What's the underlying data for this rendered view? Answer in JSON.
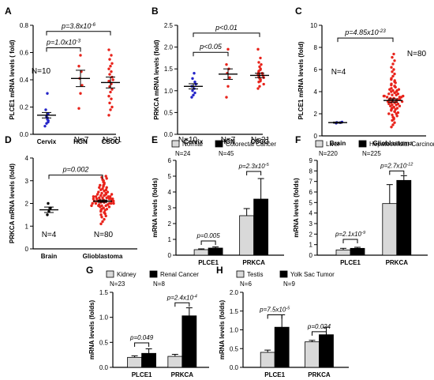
{
  "figure": {
    "panels": [
      "A",
      "B",
      "C",
      "D",
      "E",
      "F",
      "G",
      "H"
    ],
    "colors": {
      "red": "#e8231b",
      "blue": "#2424c8",
      "black": "#000000",
      "grey": "#d9d9d9"
    }
  },
  "chart_data": [
    {
      "id": "A",
      "type": "scatter",
      "ylabel": "PLCE1 mRNA levels ( fold)",
      "ylim": [
        0,
        0.8
      ],
      "yticks": [
        "0.0",
        "0.2",
        "0.4",
        "0.6",
        "0.8"
      ],
      "categories": [
        "Cervix",
        "HGN",
        "CSCC"
      ],
      "groups": [
        {
          "label": "Cervix",
          "n": "N=10",
          "color": "#2424c8",
          "mean": 0.14,
          "sem": 0.02,
          "points": [
            0.06,
            0.08,
            0.09,
            0.1,
            0.11,
            0.12,
            0.13,
            0.15,
            0.18,
            0.3
          ]
        },
        {
          "label": "HGN",
          "n": "N=7",
          "color": "#e8231b",
          "mean": 0.41,
          "sem": 0.06,
          "points": [
            0.19,
            0.3,
            0.36,
            0.41,
            0.46,
            0.5,
            0.58
          ]
        },
        {
          "label": "CSCC",
          "n": "N=21",
          "color": "#e8231b",
          "mean": 0.38,
          "sem": 0.04,
          "points": [
            0.14,
            0.18,
            0.2,
            0.23,
            0.26,
            0.28,
            0.31,
            0.33,
            0.35,
            0.37,
            0.39,
            0.4,
            0.42,
            0.44,
            0.46,
            0.48,
            0.5,
            0.52,
            0.55,
            0.58,
            0.62
          ]
        }
      ],
      "brackets": [
        {
          "from": 0,
          "to": 2,
          "y": 0.755,
          "label": "p=3.8x10",
          "sup": "-6"
        },
        {
          "from": 0,
          "to": 1,
          "y": 0.635,
          "label": "p=1.0x10",
          "sup": "-3"
        }
      ]
    },
    {
      "id": "B",
      "type": "scatter",
      "ylabel": "PRKCA mRNA levels (fold)",
      "ylim": [
        0,
        2.5
      ],
      "yticks": [
        "0.0",
        "0.5",
        "1.0",
        "1.5",
        "2.0",
        "2.5"
      ],
      "categories": [
        "Cervix",
        "HGN",
        "CSCC"
      ],
      "groups": [
        {
          "label": "Cervix",
          "n": "N=10",
          "color": "#2424c8",
          "mean": 1.1,
          "sem": 0.06,
          "points": [
            0.85,
            0.9,
            0.95,
            1.0,
            1.05,
            1.1,
            1.15,
            1.2,
            1.28,
            1.4
          ]
        },
        {
          "label": "HGN",
          "n": "N=7",
          "color": "#e8231b",
          "mean": 1.38,
          "sem": 0.12,
          "points": [
            0.85,
            1.1,
            1.3,
            1.4,
            1.5,
            1.6,
            1.95
          ]
        },
        {
          "label": "CSCC",
          "n": "N=21",
          "color": "#e8231b",
          "mean": 1.35,
          "sem": 0.05,
          "points": [
            1.05,
            1.1,
            1.15,
            1.2,
            1.22,
            1.25,
            1.28,
            1.3,
            1.32,
            1.35,
            1.38,
            1.4,
            1.42,
            1.45,
            1.48,
            1.5,
            1.55,
            1.6,
            1.65,
            1.75,
            1.95
          ]
        }
      ],
      "brackets": [
        {
          "from": 0,
          "to": 2,
          "y": 2.32,
          "label": "p<0.01",
          "sup": ""
        },
        {
          "from": 0,
          "to": 1,
          "y": 1.88,
          "label": "p<0.05",
          "sup": ""
        }
      ]
    },
    {
      "id": "C",
      "type": "scatter",
      "ylabel": "PLCE1 mRNA levels (fold)",
      "ylim": [
        0,
        10
      ],
      "yticks": [
        "0",
        "2",
        "4",
        "6",
        "8",
        "10"
      ],
      "categories": [
        "Brain",
        "Glioblastoma"
      ],
      "groups": [
        {
          "label": "Brain",
          "n": "N=4",
          "color": "#2424c8",
          "mean": 1.2,
          "sem": 0.05,
          "points": [
            1.15,
            1.2,
            1.22,
            1.25
          ]
        },
        {
          "label": "Glioblastoma",
          "n": "N=80",
          "color": "#e8231b",
          "mean": 3.2,
          "sem": 0.15,
          "points": [
            0.8,
            1.0,
            1.2,
            1.4,
            1.5,
            1.6,
            1.7,
            1.8,
            1.9,
            2.0,
            2.0,
            2.1,
            2.2,
            2.2,
            2.3,
            2.4,
            2.4,
            2.5,
            2.5,
            2.6,
            2.6,
            2.7,
            2.7,
            2.8,
            2.8,
            2.9,
            2.9,
            3.0,
            3.0,
            3.0,
            3.1,
            3.1,
            3.1,
            3.2,
            3.2,
            3.2,
            3.3,
            3.3,
            3.3,
            3.4,
            3.4,
            3.4,
            3.5,
            3.5,
            3.5,
            3.6,
            3.6,
            3.6,
            3.7,
            3.7,
            3.8,
            3.8,
            3.9,
            3.9,
            4.0,
            4.0,
            4.1,
            4.1,
            4.2,
            4.2,
            4.3,
            4.4,
            4.5,
            4.5,
            4.6,
            4.7,
            4.8,
            4.9,
            5.0,
            5.1,
            5.2,
            5.4,
            5.6,
            5.8,
            6.0,
            6.2,
            6.5,
            6.8,
            7.1,
            7.4
          ]
        }
      ],
      "brackets": [
        {
          "from": 0,
          "to": 1,
          "y": 8.85,
          "label": "p=4.85x10",
          "sup": "-23"
        }
      ]
    },
    {
      "id": "D",
      "type": "scatter",
      "ylabel": "PRKCA mRNA levels (fold)",
      "ylim": [
        0,
        4
      ],
      "yticks": [
        "0",
        "1",
        "2",
        "3",
        "4"
      ],
      "categories": [
        "Brain",
        "Glioblastoma"
      ],
      "groups": [
        {
          "label": "Brain",
          "n": "N=4",
          "color": "#000000",
          "mean": 1.72,
          "sem": 0.12,
          "points": [
            1.5,
            1.65,
            1.8,
            2.0
          ]
        },
        {
          "label": "Glioblastoma",
          "n": "N=80",
          "color": "#e8231b",
          "mean": 2.1,
          "sem": 0.05,
          "points": [
            1.1,
            1.2,
            1.3,
            1.4,
            1.45,
            1.5,
            1.55,
            1.6,
            1.6,
            1.65,
            1.7,
            1.7,
            1.75,
            1.75,
            1.8,
            1.8,
            1.85,
            1.85,
            1.9,
            1.9,
            1.9,
            1.95,
            1.95,
            2.0,
            2.0,
            2.0,
            2.0,
            2.05,
            2.05,
            2.05,
            2.1,
            2.1,
            2.1,
            2.1,
            2.15,
            2.15,
            2.15,
            2.2,
            2.2,
            2.2,
            2.2,
            2.25,
            2.25,
            2.25,
            2.3,
            2.3,
            2.3,
            2.35,
            2.35,
            2.35,
            2.4,
            2.4,
            2.4,
            2.45,
            2.45,
            2.5,
            2.5,
            2.55,
            2.55,
            2.6,
            2.6,
            2.65,
            2.7,
            2.7,
            2.75,
            2.8,
            2.8,
            2.85,
            2.9,
            2.95,
            3.0,
            3.05,
            3.1,
            3.15,
            3.2,
            2.3,
            2.2,
            2.0,
            1.9,
            2.1
          ]
        }
      ],
      "brackets": [
        {
          "from": 0,
          "to": 1,
          "y": 3.25,
          "label": "p=0.002",
          "sup": ""
        }
      ]
    },
    {
      "id": "E",
      "type": "bar",
      "ylabel": "mRNA levels (folds)",
      "ylim": [
        0,
        6
      ],
      "yticks": [
        "0",
        "1",
        "2",
        "3",
        "4",
        "5",
        "6"
      ],
      "categories": [
        "PLCE1",
        "PRKCA"
      ],
      "series": [
        {
          "name": "Normal",
          "n": "N=24",
          "color": "#d9d9d9",
          "values": [
            0.35,
            2.5
          ],
          "err": [
            0.05,
            0.45
          ]
        },
        {
          "name": "Colorectal Cancer",
          "n": "N=45",
          "color": "#000000",
          "values": [
            0.45,
            3.55
          ],
          "err": [
            0.07,
            1.3
          ]
        }
      ],
      "brackets": [
        {
          "cat": 0,
          "y": 0.9,
          "label": "p=0.005",
          "sup": ""
        },
        {
          "cat": 1,
          "y": 5.3,
          "label": "p=2.3x10",
          "sup": "-5"
        }
      ]
    },
    {
      "id": "F",
      "type": "bar",
      "ylabel": "mRNA levels (folds)",
      "ylim": [
        0,
        9
      ],
      "yticks": [
        "0",
        "1",
        "2",
        "3",
        "4",
        "5",
        "6",
        "7",
        "8",
        "9"
      ],
      "categories": [
        "PLCE1",
        "PRKCA"
      ],
      "series": [
        {
          "name": "Liver",
          "n": "N=220",
          "color": "#d9d9d9",
          "values": [
            0.5,
            4.9
          ],
          "err": [
            0.15,
            1.8
          ]
        },
        {
          "name": "Hepatocellular Carcinoma",
          "n": "N=225",
          "color": "#000000",
          "values": [
            0.65,
            7.1
          ],
          "err": [
            0.1,
            0.45
          ]
        }
      ],
      "brackets": [
        {
          "cat": 0,
          "y": 1.5,
          "label": "p=2.1x10",
          "sup": "-9"
        },
        {
          "cat": 1,
          "y": 8.0,
          "label": "p=2.7x10",
          "sup": "-12"
        }
      ]
    },
    {
      "id": "G",
      "type": "bar",
      "ylabel": "mRNA levels (folds)",
      "ylim": [
        0,
        1.5
      ],
      "yticks": [
        "0.0",
        "0.5",
        "1.0",
        "1.5"
      ],
      "categories": [
        "PLCE1",
        "PRKCA"
      ],
      "series": [
        {
          "name": "Kidney",
          "n": "N=23",
          "color": "#d9d9d9",
          "values": [
            0.2,
            0.22
          ],
          "err": [
            0.03,
            0.04
          ]
        },
        {
          "name": "Renal Cancer",
          "n": "N=8",
          "color": "#000000",
          "values": [
            0.28,
            1.03
          ],
          "err": [
            0.09,
            0.16
          ]
        }
      ],
      "brackets": [
        {
          "cat": 0,
          "y": 0.49,
          "label": "p=0.049",
          "sup": ""
        },
        {
          "cat": 1,
          "y": 1.29,
          "label": "p=2.4x10",
          "sup": "-4"
        }
      ]
    },
    {
      "id": "H",
      "type": "bar",
      "ylabel": "mRNA levels (folds)",
      "ylim": [
        0,
        2
      ],
      "yticks": [
        "0.0",
        "0.5",
        "1.0",
        "1.5",
        "2.0"
      ],
      "categories": [
        "PLCE1",
        "PRKCA"
      ],
      "series": [
        {
          "name": "Testis",
          "n": "N=6",
          "color": "#d9d9d9",
          "values": [
            0.4,
            0.68
          ],
          "err": [
            0.06,
            0.04
          ]
        },
        {
          "name": "Yolk Sac Tumor",
          "n": "N=9",
          "color": "#000000",
          "values": [
            1.07,
            0.87
          ],
          "err": [
            0.33,
            0.2
          ]
        }
      ],
      "brackets": [
        {
          "cat": 0,
          "y": 1.4,
          "label": "p=7.5x10",
          "sup": "-5"
        },
        {
          "cat": 1,
          "y": 0.95,
          "label": "p=0.024",
          "sup": ""
        }
      ]
    }
  ]
}
